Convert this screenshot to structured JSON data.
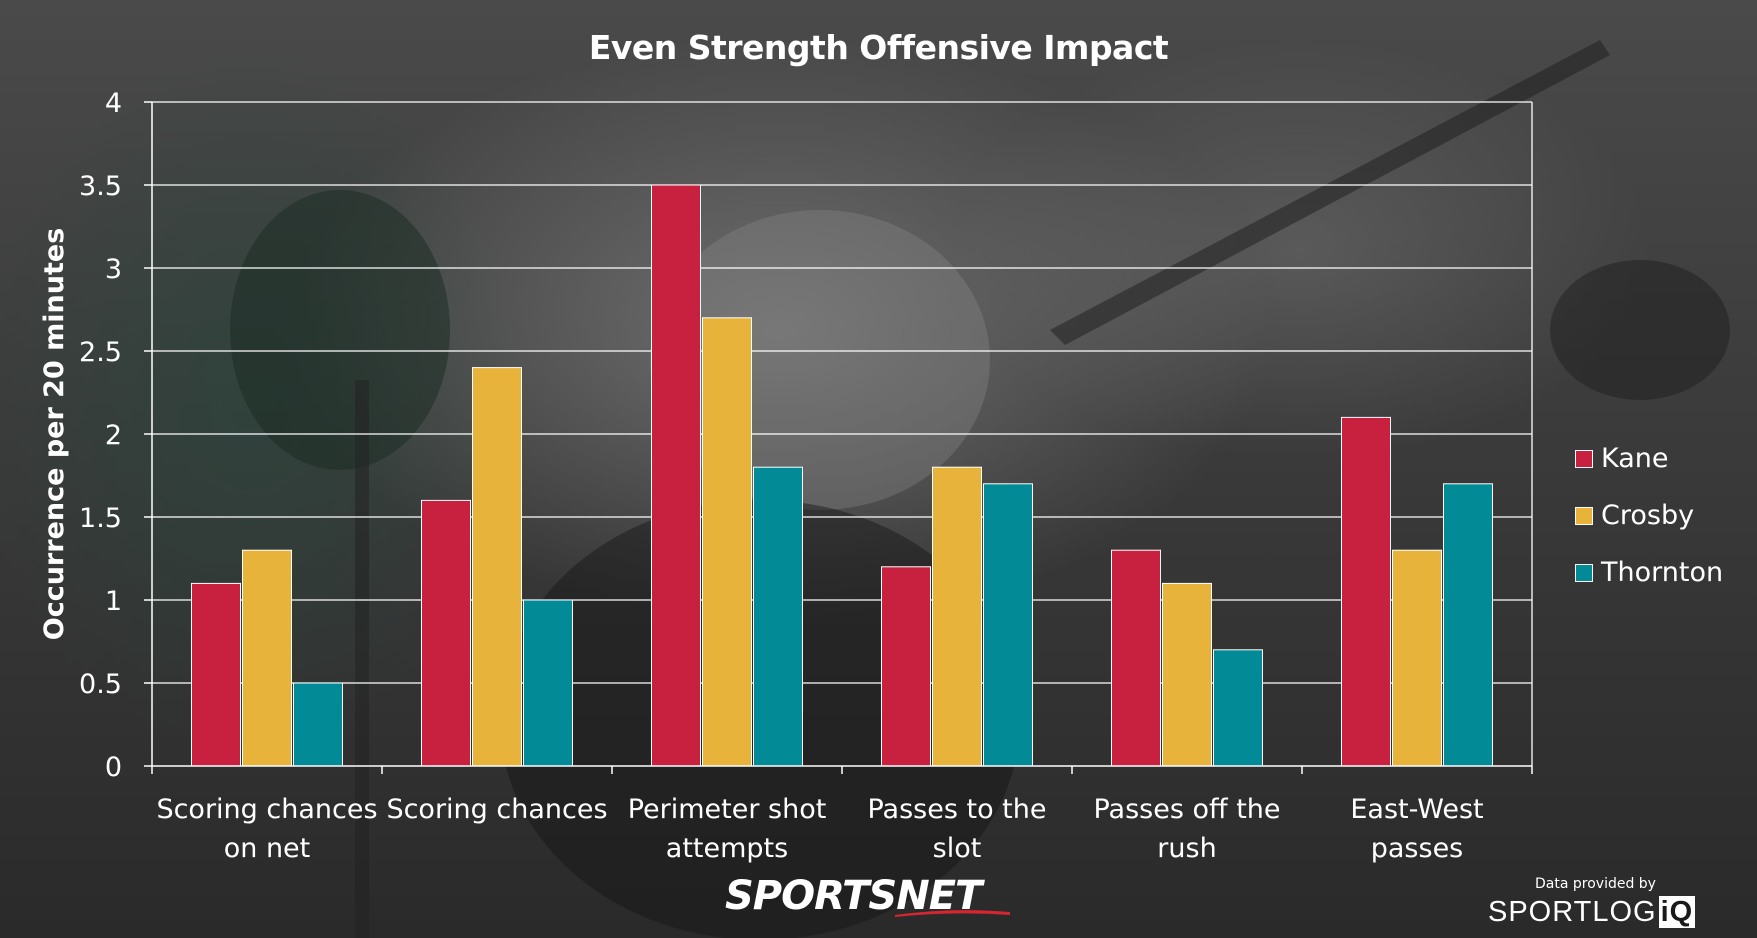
{
  "brand": {
    "logo_text": "SPORTSNET"
  },
  "credit": {
    "text": "Data provided by",
    "provider_text": "SPORTLOG",
    "provider_box": "iQ"
  },
  "colors": {
    "kane": "#c8213f",
    "crosby": "#e8b33a",
    "thornton": "#028b97",
    "text": "#ffffff",
    "grid": "#ffffff"
  },
  "chart_data": {
    "type": "bar",
    "title": "Even Strength Offensive Impact",
    "xlabel": "",
    "ylabel": "Occurrence per 20 minutes",
    "ylim": [
      0,
      4
    ],
    "yticks": [
      "0",
      "0.5",
      "1",
      "1.5",
      "2",
      "2.5",
      "3",
      "3.5",
      "4"
    ],
    "grid": true,
    "legend_position": "right",
    "categories": [
      [
        "Scoring chances",
        "on net"
      ],
      [
        "Scoring chances"
      ],
      [
        "Perimeter shot",
        "attempts"
      ],
      [
        "Passes to the",
        "slot"
      ],
      [
        "Passes off the",
        "rush"
      ],
      [
        "East-West",
        "passes"
      ]
    ],
    "series": [
      {
        "name": "Kane",
        "color": "#c8213f",
        "values": [
          1.1,
          1.6,
          3.5,
          1.2,
          1.3,
          2.1
        ]
      },
      {
        "name": "Crosby",
        "color": "#e8b33a",
        "values": [
          1.3,
          2.4,
          2.7,
          1.8,
          1.1,
          1.3
        ]
      },
      {
        "name": "Thornton",
        "color": "#028b97",
        "values": [
          0.5,
          1.0,
          1.8,
          1.7,
          0.7,
          1.7
        ]
      }
    ]
  }
}
